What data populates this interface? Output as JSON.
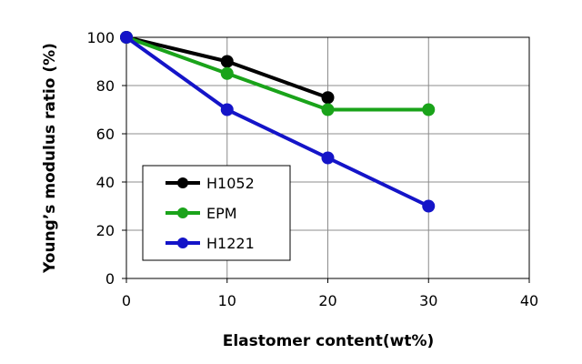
{
  "chart_data": {
    "type": "line",
    "xlabel": "Elastomer content(wt%)",
    "ylabel": "Young’s modulus ratio (%)",
    "xlim": [
      0,
      40
    ],
    "ylim": [
      0,
      100
    ],
    "xticks": [
      0,
      10,
      20,
      30,
      40
    ],
    "yticks": [
      0,
      20,
      40,
      60,
      80,
      100
    ],
    "grid": true,
    "legend_position": "lower-left",
    "series": [
      {
        "name": "H1052",
        "color": "#000000",
        "x": [
          0,
          10,
          20
        ],
        "y": [
          100,
          90,
          75
        ]
      },
      {
        "name": "EPM",
        "color": "#1aa31a",
        "x": [
          0,
          10,
          20,
          30
        ],
        "y": [
          100,
          85,
          70,
          70
        ]
      },
      {
        "name": "H1221",
        "color": "#1414c8",
        "x": [
          0,
          10,
          20,
          30
        ],
        "y": [
          100,
          70,
          50,
          30
        ]
      }
    ]
  }
}
